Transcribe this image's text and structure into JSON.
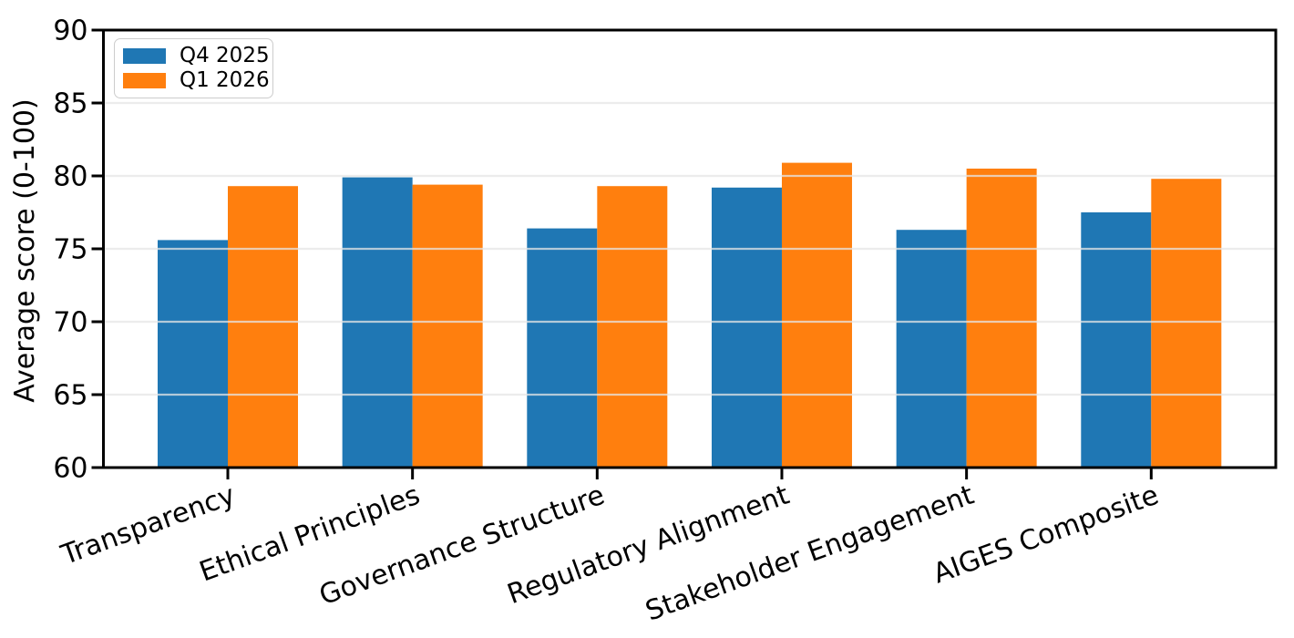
{
  "chart_data": {
    "type": "bar",
    "title": "",
    "xlabel": "",
    "ylabel": "Average score (0-100)",
    "ylim": [
      60,
      90
    ],
    "yticks": [
      60,
      65,
      70,
      75,
      80,
      85,
      90
    ],
    "grid": true,
    "legend_position": "upper left",
    "categories": [
      "Transparency",
      "Ethical Principles",
      "Governance Structure",
      "Regulatory Alignment",
      "Stakeholder Engagement",
      "AIGES Composite"
    ],
    "series": [
      {
        "name": "Q4 2025",
        "color": "#1f77b4",
        "values": [
          75.6,
          79.9,
          76.4,
          79.2,
          76.3,
          77.5
        ]
      },
      {
        "name": "Q1 2026",
        "color": "#ff7f0e",
        "values": [
          79.3,
          79.4,
          79.3,
          80.9,
          80.5,
          79.8
        ]
      }
    ],
    "colors": {
      "axis": "#000000",
      "grid": "#e6e6e6",
      "background": "#ffffff"
    }
  }
}
